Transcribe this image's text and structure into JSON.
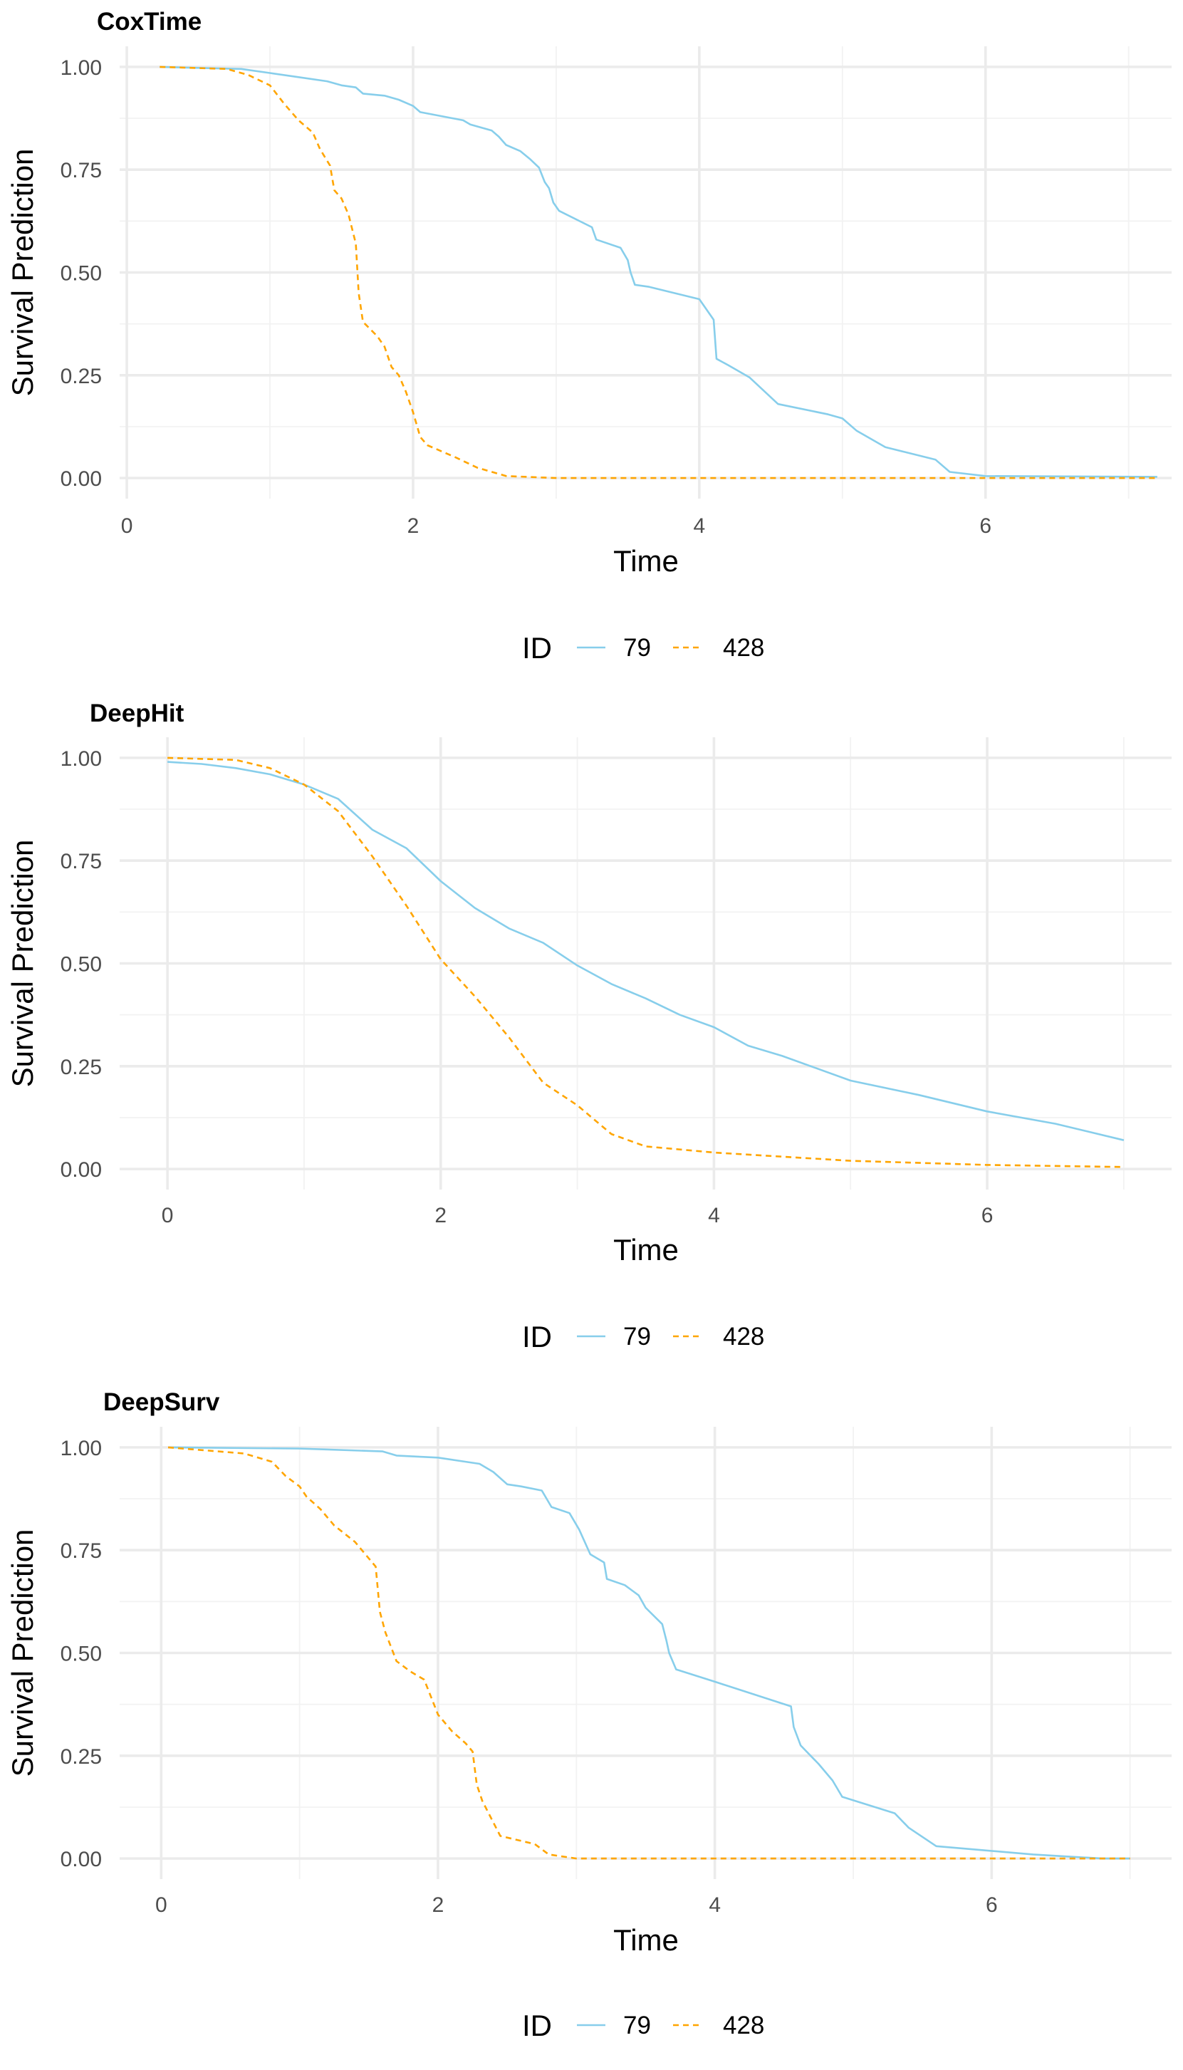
{
  "chart_data": [
    {
      "type": "line",
      "title": "CoxTime",
      "xlabel": "Time",
      "ylabel": "Survival Prediction",
      "xlim": [
        -0.05,
        7.3
      ],
      "ylim": [
        -0.05,
        1.05
      ],
      "xticks": [
        "0",
        "2",
        "4",
        "6"
      ],
      "yticks": [
        "0.00",
        "0.25",
        "0.50",
        "0.75",
        "1.00"
      ],
      "grid": true,
      "legend": {
        "title": "ID",
        "position": "bottom"
      },
      "series": [
        {
          "name": "79",
          "color": "#87ceeb",
          "dash": "solid",
          "points": [
            [
              0.23,
              1.0
            ],
            [
              0.8,
              0.995
            ],
            [
              1.0,
              0.985
            ],
            [
              1.2,
              0.975
            ],
            [
              1.4,
              0.965
            ],
            [
              1.5,
              0.955
            ],
            [
              1.6,
              0.95
            ],
            [
              1.65,
              0.935
            ],
            [
              1.8,
              0.93
            ],
            [
              1.9,
              0.92
            ],
            [
              2.0,
              0.905
            ],
            [
              2.05,
              0.89
            ],
            [
              2.2,
              0.88
            ],
            [
              2.35,
              0.87
            ],
            [
              2.4,
              0.86
            ],
            [
              2.55,
              0.845
            ],
            [
              2.6,
              0.83
            ],
            [
              2.65,
              0.81
            ],
            [
              2.75,
              0.795
            ],
            [
              2.82,
              0.775
            ],
            [
              2.88,
              0.755
            ],
            [
              2.92,
              0.72
            ],
            [
              2.95,
              0.705
            ],
            [
              2.98,
              0.67
            ],
            [
              3.02,
              0.65
            ],
            [
              3.25,
              0.61
            ],
            [
              3.28,
              0.58
            ],
            [
              3.45,
              0.56
            ],
            [
              3.5,
              0.53
            ],
            [
              3.52,
              0.5
            ],
            [
              3.55,
              0.47
            ],
            [
              3.65,
              0.465
            ],
            [
              4.0,
              0.435
            ],
            [
              4.1,
              0.385
            ],
            [
              4.12,
              0.29
            ],
            [
              4.2,
              0.275
            ],
            [
              4.35,
              0.245
            ],
            [
              4.55,
              0.18
            ],
            [
              4.9,
              0.155
            ],
            [
              5.0,
              0.145
            ],
            [
              5.1,
              0.115
            ],
            [
              5.3,
              0.075
            ],
            [
              5.65,
              0.045
            ],
            [
              5.75,
              0.015
            ],
            [
              6.0,
              0.005
            ],
            [
              7.2,
              0.003
            ]
          ]
        },
        {
          "name": "428",
          "color": "#ffa500",
          "dash": "dashed",
          "points": [
            [
              0.23,
              1.0
            ],
            [
              0.7,
              0.995
            ],
            [
              0.85,
              0.98
            ],
            [
              1.0,
              0.955
            ],
            [
              1.1,
              0.91
            ],
            [
              1.2,
              0.87
            ],
            [
              1.3,
              0.84
            ],
            [
              1.35,
              0.8
            ],
            [
              1.42,
              0.76
            ],
            [
              1.45,
              0.7
            ],
            [
              1.5,
              0.68
            ],
            [
              1.55,
              0.64
            ],
            [
              1.6,
              0.57
            ],
            [
              1.62,
              0.45
            ],
            [
              1.65,
              0.38
            ],
            [
              1.75,
              0.345
            ],
            [
              1.8,
              0.32
            ],
            [
              1.85,
              0.27
            ],
            [
              1.9,
              0.25
            ],
            [
              1.95,
              0.21
            ],
            [
              2.0,
              0.16
            ],
            [
              2.05,
              0.1
            ],
            [
              2.1,
              0.08
            ],
            [
              2.3,
              0.05
            ],
            [
              2.45,
              0.025
            ],
            [
              2.65,
              0.005
            ],
            [
              3.0,
              0.0
            ],
            [
              7.2,
              0.0
            ]
          ]
        }
      ]
    },
    {
      "type": "line",
      "title": "DeepHit",
      "xlabel": "Time",
      "ylabel": "Survival Prediction",
      "xlim": [
        -0.35,
        7.35
      ],
      "ylim": [
        -0.05,
        1.05
      ],
      "xticks": [
        "0",
        "2",
        "4",
        "6"
      ],
      "yticks": [
        "0.00",
        "0.25",
        "0.50",
        "0.75",
        "1.00"
      ],
      "grid": true,
      "legend": {
        "title": "ID",
        "position": "bottom"
      },
      "series": [
        {
          "name": "79",
          "color": "#87ceeb",
          "dash": "solid",
          "points": [
            [
              0.0,
              0.99
            ],
            [
              0.25,
              0.985
            ],
            [
              0.5,
              0.975
            ],
            [
              0.75,
              0.96
            ],
            [
              1.0,
              0.935
            ],
            [
              1.25,
              0.9
            ],
            [
              1.5,
              0.825
            ],
            [
              1.75,
              0.78
            ],
            [
              2.0,
              0.7
            ],
            [
              2.25,
              0.635
            ],
            [
              2.5,
              0.585
            ],
            [
              2.75,
              0.55
            ],
            [
              3.0,
              0.495
            ],
            [
              3.25,
              0.45
            ],
            [
              3.5,
              0.415
            ],
            [
              3.75,
              0.375
            ],
            [
              4.0,
              0.345
            ],
            [
              4.25,
              0.3
            ],
            [
              4.5,
              0.275
            ],
            [
              4.75,
              0.245
            ],
            [
              5.0,
              0.215
            ],
            [
              5.5,
              0.18
            ],
            [
              6.0,
              0.14
            ],
            [
              6.5,
              0.11
            ],
            [
              7.0,
              0.07
            ]
          ]
        },
        {
          "name": "428",
          "color": "#ffa500",
          "dash": "dashed",
          "points": [
            [
              0.0,
              1.0
            ],
            [
              0.5,
              0.995
            ],
            [
              0.75,
              0.975
            ],
            [
              1.0,
              0.935
            ],
            [
              1.25,
              0.87
            ],
            [
              1.5,
              0.76
            ],
            [
              1.75,
              0.64
            ],
            [
              2.0,
              0.51
            ],
            [
              2.25,
              0.42
            ],
            [
              2.5,
              0.32
            ],
            [
              2.75,
              0.21
            ],
            [
              3.0,
              0.155
            ],
            [
              3.25,
              0.085
            ],
            [
              3.5,
              0.055
            ],
            [
              4.0,
              0.04
            ],
            [
              5.0,
              0.02
            ],
            [
              6.0,
              0.01
            ],
            [
              7.0,
              0.005
            ]
          ]
        }
      ]
    },
    {
      "type": "line",
      "title": "DeepSurv",
      "xlabel": "Time",
      "ylabel": "Survival Prediction",
      "xlim": [
        -0.3,
        7.3
      ],
      "ylim": [
        -0.05,
        1.05
      ],
      "xticks": [
        "0",
        "2",
        "4",
        "6"
      ],
      "yticks": [
        "0.00",
        "0.25",
        "0.50",
        "0.75",
        "1.00"
      ],
      "grid": true,
      "legend": {
        "title": "ID",
        "position": "bottom"
      },
      "series": [
        {
          "name": "79",
          "color": "#87ceeb",
          "dash": "solid",
          "points": [
            [
              0.05,
              1.0
            ],
            [
              1.0,
              0.997
            ],
            [
              1.6,
              0.99
            ],
            [
              1.7,
              0.98
            ],
            [
              2.0,
              0.975
            ],
            [
              2.2,
              0.965
            ],
            [
              2.3,
              0.96
            ],
            [
              2.4,
              0.94
            ],
            [
              2.5,
              0.91
            ],
            [
              2.6,
              0.905
            ],
            [
              2.75,
              0.895
            ],
            [
              2.82,
              0.855
            ],
            [
              2.95,
              0.84
            ],
            [
              3.02,
              0.8
            ],
            [
              3.1,
              0.74
            ],
            [
              3.2,
              0.72
            ],
            [
              3.22,
              0.68
            ],
            [
              3.35,
              0.665
            ],
            [
              3.45,
              0.64
            ],
            [
              3.5,
              0.61
            ],
            [
              3.62,
              0.57
            ],
            [
              3.65,
              0.53
            ],
            [
              3.67,
              0.5
            ],
            [
              3.72,
              0.46
            ],
            [
              4.0,
              0.43
            ],
            [
              4.55,
              0.37
            ],
            [
              4.57,
              0.32
            ],
            [
              4.62,
              0.275
            ],
            [
              4.75,
              0.23
            ],
            [
              4.85,
              0.19
            ],
            [
              4.92,
              0.15
            ],
            [
              5.3,
              0.11
            ],
            [
              5.4,
              0.075
            ],
            [
              5.6,
              0.03
            ],
            [
              6.3,
              0.01
            ],
            [
              6.8,
              0.0
            ],
            [
              7.0,
              0.0
            ]
          ]
        },
        {
          "name": "428",
          "color": "#ffa500",
          "dash": "dashed",
          "points": [
            [
              0.05,
              1.0
            ],
            [
              0.6,
              0.985
            ],
            [
              0.8,
              0.965
            ],
            [
              0.9,
              0.93
            ],
            [
              1.0,
              0.905
            ],
            [
              1.05,
              0.88
            ],
            [
              1.15,
              0.85
            ],
            [
              1.25,
              0.81
            ],
            [
              1.4,
              0.77
            ],
            [
              1.55,
              0.71
            ],
            [
              1.58,
              0.6
            ],
            [
              1.62,
              0.55
            ],
            [
              1.7,
              0.48
            ],
            [
              1.8,
              0.455
            ],
            [
              1.9,
              0.435
            ],
            [
              2.0,
              0.35
            ],
            [
              2.1,
              0.31
            ],
            [
              2.2,
              0.28
            ],
            [
              2.25,
              0.26
            ],
            [
              2.28,
              0.18
            ],
            [
              2.32,
              0.14
            ],
            [
              2.45,
              0.055
            ],
            [
              2.7,
              0.035
            ],
            [
              2.8,
              0.01
            ],
            [
              3.0,
              0.0
            ],
            [
              7.0,
              0.0
            ]
          ]
        }
      ]
    }
  ]
}
